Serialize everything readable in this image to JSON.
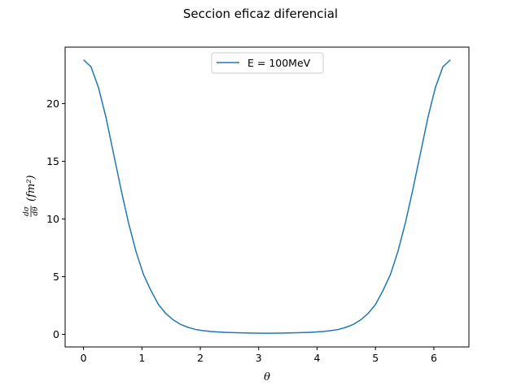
{
  "chart_data": {
    "type": "line",
    "title": "Seccion eficaz diferencial",
    "xlabel": "θ",
    "ylabel_num": "dσ",
    "ylabel_den": "dθ",
    "ylabel_tail": "(fm²)",
    "xlim": [
      -0.315,
      6.6
    ],
    "ylim": [
      -1.09,
      24.9
    ],
    "xticks": [
      0,
      1,
      2,
      3,
      4,
      5,
      6
    ],
    "yticks": [
      0,
      5,
      10,
      15,
      20
    ],
    "grid": false,
    "legend_position": "top-center",
    "series": [
      {
        "name": "E = 100MeV",
        "color": "#1f77b4",
        "x": [
          0.0,
          0.128,
          0.256,
          0.385,
          0.513,
          0.641,
          0.769,
          0.898,
          1.026,
          1.154,
          1.282,
          1.41,
          1.539,
          1.667,
          1.795,
          1.923,
          2.052,
          2.18,
          2.308,
          2.436,
          2.564,
          2.693,
          2.821,
          2.949,
          3.077,
          3.206,
          3.334,
          3.462,
          3.59,
          3.718,
          3.847,
          3.975,
          4.103,
          4.231,
          4.36,
          4.488,
          4.616,
          4.744,
          4.872,
          5.001,
          5.129,
          5.257,
          5.385,
          5.514,
          5.642,
          5.77,
          5.898,
          6.026,
          6.155,
          6.283
        ],
        "y": [
          23.8,
          23.2,
          21.4,
          18.8,
          15.7,
          12.6,
          9.7,
          7.2,
          5.2,
          3.8,
          2.6,
          1.8,
          1.25,
          0.85,
          0.6,
          0.42,
          0.32,
          0.25,
          0.2,
          0.17,
          0.15,
          0.13,
          0.12,
          0.11,
          0.1,
          0.1,
          0.11,
          0.12,
          0.13,
          0.15,
          0.17,
          0.2,
          0.25,
          0.32,
          0.42,
          0.6,
          0.85,
          1.25,
          1.8,
          2.6,
          3.8,
          5.2,
          7.2,
          9.7,
          12.6,
          15.7,
          18.8,
          21.4,
          23.2,
          23.8
        ]
      }
    ]
  }
}
